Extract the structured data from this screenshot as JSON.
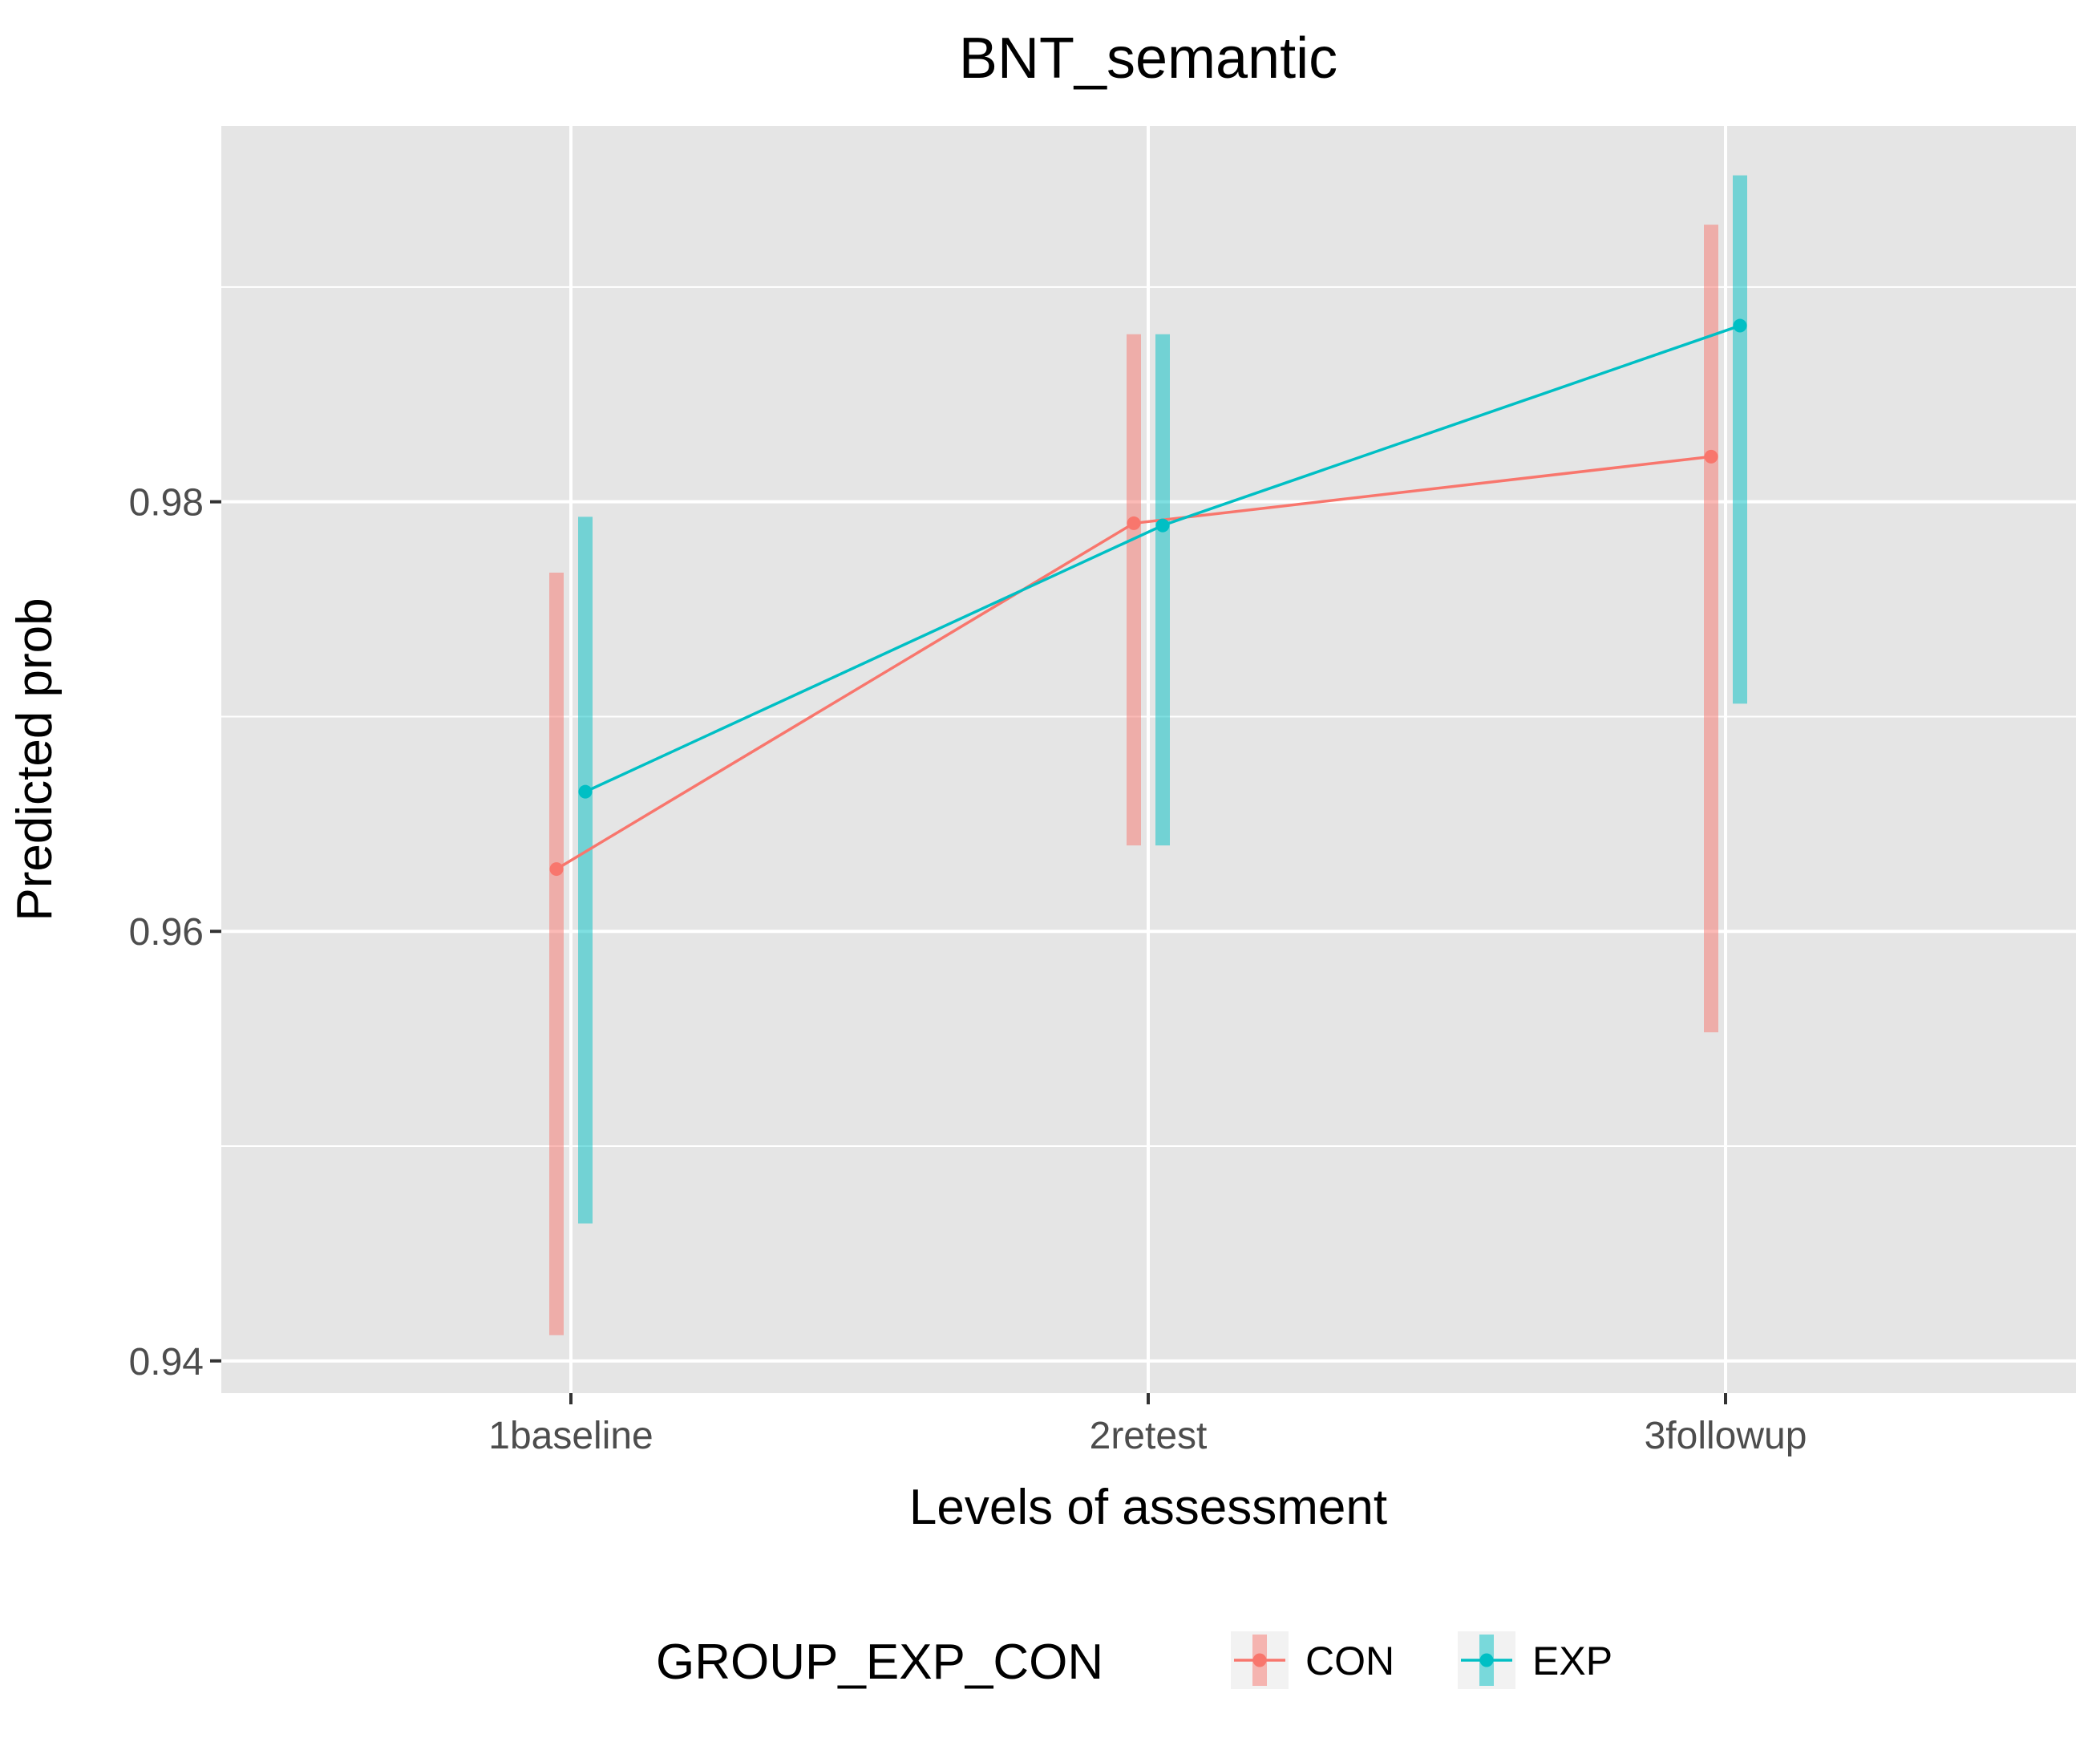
{
  "chart_data": {
    "type": "line",
    "title": "BNT_semantic",
    "xlabel": "Levels of assessment",
    "ylabel": "Predicted prob",
    "categories": [
      "1baseline",
      "2retest",
      "3followup"
    ],
    "y_ticks": [
      0.94,
      0.96,
      0.98
    ],
    "y_tick_labels": [
      "0.94",
      "0.96",
      "0.98"
    ],
    "ylim": [
      0.9385,
      0.9975
    ],
    "grid": true,
    "legend": {
      "title": "GROUP_EXP_CON",
      "position": "bottom"
    },
    "series": [
      {
        "name": "CON",
        "color": "#F8766D",
        "values": [
          0.9629,
          0.979,
          0.9821
        ],
        "lower": [
          0.9412,
          0.964,
          0.9553
        ],
        "upper": [
          0.9767,
          0.9878,
          0.9929
        ]
      },
      {
        "name": "EXP",
        "color": "#00BFC4",
        "values": [
          0.9665,
          0.9789,
          0.9882
        ],
        "lower": [
          0.9464,
          0.964,
          0.9706
        ],
        "upper": [
          0.9793,
          0.9878,
          0.9952
        ]
      }
    ]
  }
}
